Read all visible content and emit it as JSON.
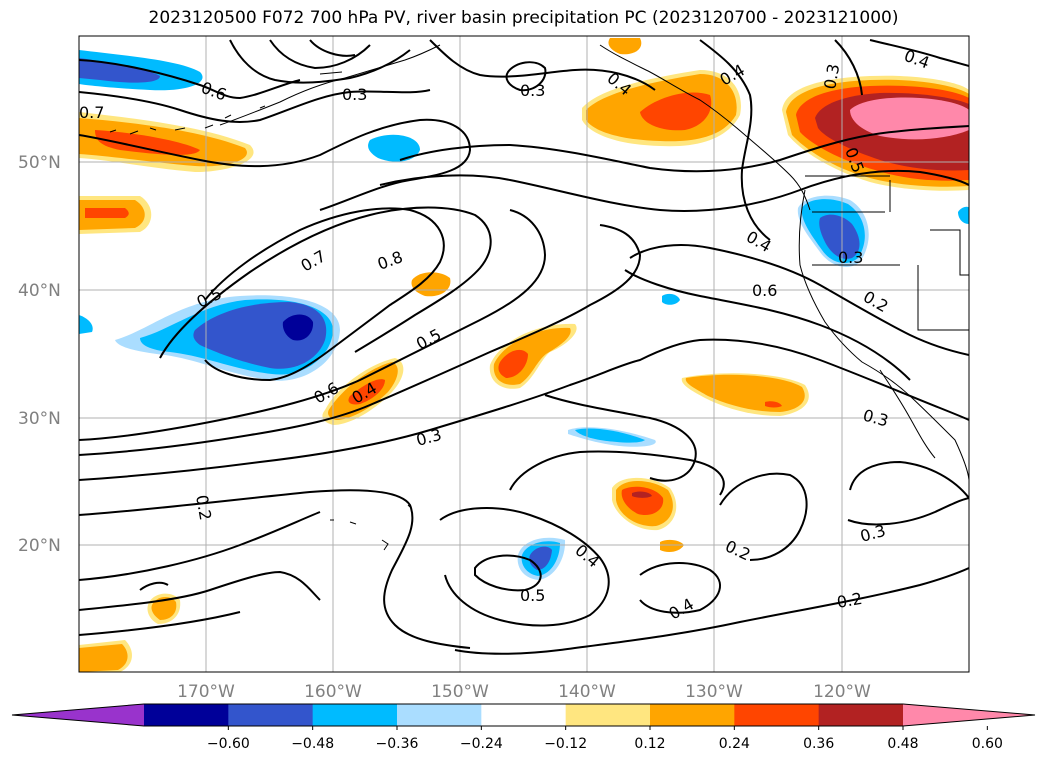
{
  "title": "2023120500 F072 700 hPa PV, river basin precipitation PC (2023120700 - 2023121000)",
  "lat_labels": [
    "50°N",
    "40°N",
    "30°N",
    "20°N"
  ],
  "lon_labels": [
    "170°W",
    "160°W",
    "150°W",
    "140°W",
    "130°W",
    "120°W"
  ],
  "contour_labels": [
    "0.6",
    "0.7",
    "0.3",
    "0.3",
    "0.4",
    "0.4",
    "0.3",
    "0.4",
    "0.5",
    "0.4",
    "0.6",
    "0.2",
    "0.3",
    "0.5",
    "0.7",
    "0.8",
    "0.5",
    "0.6",
    "0.4",
    "0.3",
    "0.3",
    "0.2",
    "0.2",
    "0.3",
    "0.4",
    "0.5",
    "0.4",
    "0.2"
  ],
  "colorbar": {
    "ticks": [
      "−0.60",
      "−0.48",
      "−0.36",
      "−0.24",
      "−0.12",
      "0.12",
      "0.24",
      "0.36",
      "0.48",
      "0.60"
    ],
    "colors": [
      "#9933cc",
      "#000099",
      "#3355cc",
      "#00bbff",
      "#aaddff",
      "#ffffff",
      "#ffe680",
      "#ffa500",
      "#ff4500",
      "#b22222",
      "#ff88aa"
    ]
  },
  "fill_colors": {
    "dark_blue": "#000099",
    "blue": "#3355cc",
    "cyan": "#00bbff",
    "light_blue": "#aaddff",
    "light_yellow": "#ffe680",
    "orange": "#ffa500",
    "red_orange": "#ff4500",
    "dark_red": "#b22222",
    "pink": "#ff88aa"
  }
}
